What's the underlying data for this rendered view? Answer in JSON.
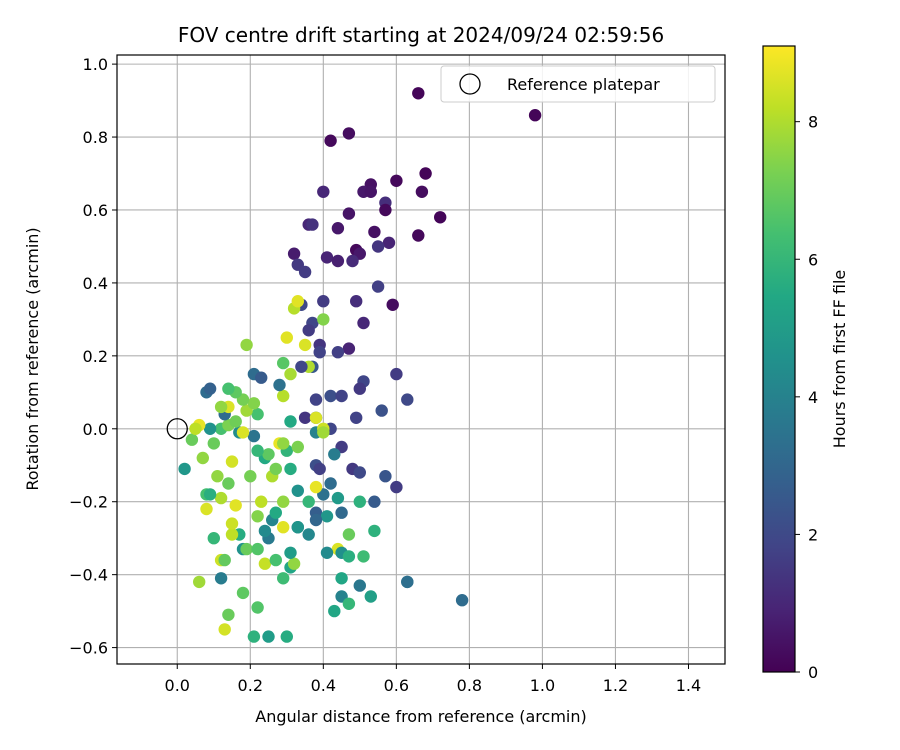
{
  "chart_data": {
    "type": "scatter",
    "title": "FOV centre drift starting at 2024/09/24 02:59:56",
    "xlabel": "Angular distance from reference (arcmin)",
    "ylabel": "Rotation from reference (arcmin)",
    "xlim": [
      -0.165,
      1.5
    ],
    "ylim": [
      -0.645,
      1.025
    ],
    "xticks": [
      0.0,
      0.2,
      0.4,
      0.6,
      0.8,
      1.0,
      1.2,
      1.4
    ],
    "xtick_labels": [
      "0.0",
      "0.2",
      "0.4",
      "0.6",
      "0.8",
      "1.0",
      "1.2",
      "1.4"
    ],
    "yticks": [
      -0.6,
      -0.4,
      -0.2,
      0.0,
      0.2,
      0.4,
      0.6,
      0.8,
      1.0
    ],
    "ytick_labels": [
      "−0.6",
      "−0.4",
      "−0.2",
      "0.0",
      "0.2",
      "0.4",
      "0.6",
      "0.8",
      "1.0"
    ],
    "grid": true,
    "legend": {
      "placement": "top-right",
      "entries": [
        "Reference platepar"
      ]
    },
    "colorbar": {
      "label": "Hours from first FF file",
      "colormap": "viridis",
      "range": [
        0,
        9.1
      ],
      "ticks": [
        0,
        2,
        4,
        6,
        8
      ],
      "tick_labels": [
        "0",
        "2",
        "4",
        "6",
        "8"
      ]
    },
    "reference_point": {
      "x": 0.0,
      "y": 0.0
    },
    "points": [
      {
        "x": 0.66,
        "y": 0.92,
        "c": 0.1
      },
      {
        "x": 0.98,
        "y": 0.86,
        "c": 0.1
      },
      {
        "x": 0.47,
        "y": 0.81,
        "c": 0.3
      },
      {
        "x": 0.42,
        "y": 0.79,
        "c": 0.2
      },
      {
        "x": 0.68,
        "y": 0.7,
        "c": 0.1
      },
      {
        "x": 0.6,
        "y": 0.68,
        "c": 0.2
      },
      {
        "x": 0.53,
        "y": 0.67,
        "c": 0.4
      },
      {
        "x": 0.4,
        "y": 0.65,
        "c": 1.0
      },
      {
        "x": 0.51,
        "y": 0.65,
        "c": 0.6
      },
      {
        "x": 0.53,
        "y": 0.65,
        "c": 0.5
      },
      {
        "x": 0.67,
        "y": 0.65,
        "c": 0.3
      },
      {
        "x": 0.57,
        "y": 0.62,
        "c": 1.2
      },
      {
        "x": 0.57,
        "y": 0.6,
        "c": 0.2
      },
      {
        "x": 0.47,
        "y": 0.59,
        "c": 0.5
      },
      {
        "x": 0.72,
        "y": 0.58,
        "c": 0.1
      },
      {
        "x": 0.36,
        "y": 0.56,
        "c": 1.0
      },
      {
        "x": 0.37,
        "y": 0.56,
        "c": 1.3
      },
      {
        "x": 0.44,
        "y": 0.55,
        "c": 0.6
      },
      {
        "x": 0.54,
        "y": 0.54,
        "c": 0.4
      },
      {
        "x": 0.66,
        "y": 0.53,
        "c": 0.2
      },
      {
        "x": 0.58,
        "y": 0.51,
        "c": 0.9
      },
      {
        "x": 0.55,
        "y": 0.5,
        "c": 1.4
      },
      {
        "x": 0.49,
        "y": 0.49,
        "c": 0.2
      },
      {
        "x": 0.5,
        "y": 0.48,
        "c": 0.6
      },
      {
        "x": 0.32,
        "y": 0.48,
        "c": 0.7
      },
      {
        "x": 0.41,
        "y": 0.47,
        "c": 0.9
      },
      {
        "x": 0.44,
        "y": 0.46,
        "c": 0.8
      },
      {
        "x": 0.48,
        "y": 0.46,
        "c": 1.1
      },
      {
        "x": 0.33,
        "y": 0.45,
        "c": 1.5
      },
      {
        "x": 0.35,
        "y": 0.43,
        "c": 1.6
      },
      {
        "x": 0.55,
        "y": 0.39,
        "c": 1.7
      },
      {
        "x": 0.4,
        "y": 0.35,
        "c": 1.6
      },
      {
        "x": 0.49,
        "y": 0.35,
        "c": 1.2
      },
      {
        "x": 0.59,
        "y": 0.34,
        "c": 0.3
      },
      {
        "x": 0.34,
        "y": 0.34,
        "c": 2.0
      },
      {
        "x": 0.37,
        "y": 0.29,
        "c": 1.9
      },
      {
        "x": 0.51,
        "y": 0.29,
        "c": 1.0
      },
      {
        "x": 0.36,
        "y": 0.27,
        "c": 1.6
      },
      {
        "x": 0.39,
        "y": 0.23,
        "c": 1.4
      },
      {
        "x": 0.47,
        "y": 0.22,
        "c": 0.9
      },
      {
        "x": 0.39,
        "y": 0.21,
        "c": 1.8
      },
      {
        "x": 0.44,
        "y": 0.21,
        "c": 1.7
      },
      {
        "x": 0.6,
        "y": 0.15,
        "c": 1.6
      },
      {
        "x": 0.37,
        "y": 0.17,
        "c": 2.5
      },
      {
        "x": 0.51,
        "y": 0.13,
        "c": 1.9
      },
      {
        "x": 0.5,
        "y": 0.11,
        "c": 1.5
      },
      {
        "x": 0.42,
        "y": 0.09,
        "c": 2.2
      },
      {
        "x": 0.45,
        "y": 0.09,
        "c": 1.8
      },
      {
        "x": 0.63,
        "y": 0.08,
        "c": 2.0
      },
      {
        "x": 0.38,
        "y": 0.08,
        "c": 1.8
      },
      {
        "x": 0.56,
        "y": 0.05,
        "c": 2.3
      },
      {
        "x": 0.49,
        "y": 0.03,
        "c": 1.8
      },
      {
        "x": 0.35,
        "y": 0.03,
        "c": 1.4
      },
      {
        "x": 0.38,
        "y": 0.03,
        "c": 3.3
      },
      {
        "x": 0.42,
        "y": 0.0,
        "c": 1.9
      },
      {
        "x": 0.38,
        "y": -0.01,
        "c": 4.0
      },
      {
        "x": 0.45,
        "y": -0.05,
        "c": 1.6
      },
      {
        "x": 0.43,
        "y": -0.07,
        "c": 3.8
      },
      {
        "x": 0.38,
        "y": -0.1,
        "c": 2.2
      },
      {
        "x": 0.39,
        "y": -0.11,
        "c": 1.7
      },
      {
        "x": 0.48,
        "y": -0.11,
        "c": 1.5
      },
      {
        "x": 0.5,
        "y": -0.12,
        "c": 2.0
      },
      {
        "x": 0.57,
        "y": -0.13,
        "c": 2.4
      },
      {
        "x": 0.6,
        "y": -0.16,
        "c": 1.6
      },
      {
        "x": 0.42,
        "y": -0.15,
        "c": 3.2
      },
      {
        "x": 0.4,
        "y": -0.18,
        "c": 3.4
      },
      {
        "x": 0.44,
        "y": -0.19,
        "c": 4.9
      },
      {
        "x": 0.5,
        "y": -0.2,
        "c": 5.8
      },
      {
        "x": 0.54,
        "y": -0.2,
        "c": 2.6
      },
      {
        "x": 0.45,
        "y": -0.23,
        "c": 3.1
      },
      {
        "x": 0.38,
        "y": -0.23,
        "c": 2.7
      },
      {
        "x": 0.41,
        "y": -0.24,
        "c": 4.8
      },
      {
        "x": 0.38,
        "y": -0.25,
        "c": 3.0
      },
      {
        "x": 0.36,
        "y": -0.29,
        "c": 4.2
      },
      {
        "x": 0.47,
        "y": -0.29,
        "c": 7.0
      },
      {
        "x": 0.54,
        "y": -0.28,
        "c": 5.8
      },
      {
        "x": 0.33,
        "y": -0.27,
        "c": 3.3
      },
      {
        "x": 0.44,
        "y": -0.33,
        "c": 8.6
      },
      {
        "x": 0.45,
        "y": -0.34,
        "c": 4.5
      },
      {
        "x": 0.41,
        "y": -0.34,
        "c": 4.3
      },
      {
        "x": 0.47,
        "y": -0.35,
        "c": 5.7
      },
      {
        "x": 0.51,
        "y": -0.35,
        "c": 6.2
      },
      {
        "x": 0.45,
        "y": -0.41,
        "c": 5.4
      },
      {
        "x": 0.5,
        "y": -0.43,
        "c": 3.6
      },
      {
        "x": 0.63,
        "y": -0.42,
        "c": 3.8
      },
      {
        "x": 0.63,
        "y": -0.42,
        "c": 3.3
      },
      {
        "x": 0.45,
        "y": -0.46,
        "c": 4.0
      },
      {
        "x": 0.53,
        "y": -0.46,
        "c": 5.1
      },
      {
        "x": 0.47,
        "y": -0.48,
        "c": 6.0
      },
      {
        "x": 0.43,
        "y": -0.5,
        "c": 5.4
      },
      {
        "x": 0.78,
        "y": -0.47,
        "c": 3.2
      },
      {
        "x": 0.3,
        "y": -0.57,
        "c": 5.6
      },
      {
        "x": 0.25,
        "y": -0.57,
        "c": 5.0
      },
      {
        "x": 0.21,
        "y": -0.57,
        "c": 5.8
      },
      {
        "x": 0.13,
        "y": -0.55,
        "c": 8.5
      },
      {
        "x": 0.14,
        "y": -0.51,
        "c": 7.0
      },
      {
        "x": 0.22,
        "y": -0.49,
        "c": 6.6
      },
      {
        "x": 0.18,
        "y": -0.45,
        "c": 6.8
      },
      {
        "x": 0.06,
        "y": -0.42,
        "c": 7.8
      },
      {
        "x": 0.12,
        "y": -0.41,
        "c": 3.8
      },
      {
        "x": 0.29,
        "y": -0.41,
        "c": 6.2
      },
      {
        "x": 0.31,
        "y": -0.38,
        "c": 5.4
      },
      {
        "x": 0.32,
        "y": -0.37,
        "c": 7.6
      },
      {
        "x": 0.24,
        "y": -0.37,
        "c": 8.3
      },
      {
        "x": 0.12,
        "y": -0.36,
        "c": 8.4
      },
      {
        "x": 0.13,
        "y": -0.36,
        "c": 6.9
      },
      {
        "x": 0.27,
        "y": -0.36,
        "c": 6.4
      },
      {
        "x": 0.31,
        "y": -0.34,
        "c": 5.0
      },
      {
        "x": 0.18,
        "y": -0.33,
        "c": 4.6
      },
      {
        "x": 0.19,
        "y": -0.33,
        "c": 7.0
      },
      {
        "x": 0.22,
        "y": -0.33,
        "c": 6.6
      },
      {
        "x": 0.25,
        "y": -0.3,
        "c": 3.7
      },
      {
        "x": 0.1,
        "y": -0.3,
        "c": 6.0
      },
      {
        "x": 0.17,
        "y": -0.29,
        "c": 5.6
      },
      {
        "x": 0.15,
        "y": -0.29,
        "c": 8.2
      },
      {
        "x": 0.24,
        "y": -0.28,
        "c": 4.3
      },
      {
        "x": 0.29,
        "y": -0.27,
        "c": 8.7
      },
      {
        "x": 0.33,
        "y": -0.27,
        "c": 4.7
      },
      {
        "x": 0.15,
        "y": -0.26,
        "c": 8.4
      },
      {
        "x": 0.26,
        "y": -0.25,
        "c": 4.1
      },
      {
        "x": 0.22,
        "y": -0.24,
        "c": 7.4
      },
      {
        "x": 0.27,
        "y": -0.23,
        "c": 5.5
      },
      {
        "x": 0.08,
        "y": -0.22,
        "c": 8.6
      },
      {
        "x": 0.16,
        "y": -0.21,
        "c": 8.7
      },
      {
        "x": 0.23,
        "y": -0.2,
        "c": 8.2
      },
      {
        "x": 0.12,
        "y": -0.19,
        "c": 8.0
      },
      {
        "x": 0.29,
        "y": -0.2,
        "c": 7.6
      },
      {
        "x": 0.36,
        "y": -0.2,
        "c": 6.0
      },
      {
        "x": 0.08,
        "y": -0.18,
        "c": 6.4
      },
      {
        "x": 0.09,
        "y": -0.18,
        "c": 5.7
      },
      {
        "x": 0.33,
        "y": -0.17,
        "c": 4.6
      },
      {
        "x": 0.38,
        "y": -0.16,
        "c": 8.8
      },
      {
        "x": 0.14,
        "y": -0.15,
        "c": 7.0
      },
      {
        "x": 0.2,
        "y": -0.13,
        "c": 7.2
      },
      {
        "x": 0.26,
        "y": -0.13,
        "c": 8.0
      },
      {
        "x": 0.11,
        "y": -0.13,
        "c": 7.6
      },
      {
        "x": 0.27,
        "y": -0.11,
        "c": 7.2
      },
      {
        "x": 0.31,
        "y": -0.11,
        "c": 5.6
      },
      {
        "x": 0.02,
        "y": -0.11,
        "c": 4.8
      },
      {
        "x": 0.15,
        "y": -0.09,
        "c": 8.5
      },
      {
        "x": 0.24,
        "y": -0.08,
        "c": 5.5
      },
      {
        "x": 0.07,
        "y": -0.08,
        "c": 7.6
      },
      {
        "x": 0.25,
        "y": -0.07,
        "c": 6.8
      },
      {
        "x": 0.22,
        "y": -0.06,
        "c": 6.0
      },
      {
        "x": 0.3,
        "y": -0.06,
        "c": 5.9
      },
      {
        "x": 0.33,
        "y": -0.05,
        "c": 7.3
      },
      {
        "x": 0.1,
        "y": -0.04,
        "c": 7.0
      },
      {
        "x": 0.28,
        "y": -0.04,
        "c": 8.8
      },
      {
        "x": 0.29,
        "y": -0.04,
        "c": 7.6
      },
      {
        "x": 0.04,
        "y": -0.03,
        "c": 7.0
      },
      {
        "x": 0.21,
        "y": -0.02,
        "c": 3.5
      },
      {
        "x": 0.17,
        "y": -0.01,
        "c": 4.4
      },
      {
        "x": 0.18,
        "y": -0.01,
        "c": 8.6
      },
      {
        "x": 0.4,
        "y": 0.0,
        "c": 8.4
      },
      {
        "x": 0.4,
        "y": -0.01,
        "c": 7.8
      },
      {
        "x": 0.12,
        "y": 0.0,
        "c": 6.4
      },
      {
        "x": 0.09,
        "y": 0.0,
        "c": 4.6
      },
      {
        "x": 0.06,
        "y": 0.01,
        "c": 8.8
      },
      {
        "x": 0.05,
        "y": 0.0,
        "c": 8.2
      },
      {
        "x": 0.14,
        "y": 0.01,
        "c": 7.3
      },
      {
        "x": 0.16,
        "y": 0.02,
        "c": 7.1
      },
      {
        "x": 0.31,
        "y": 0.02,
        "c": 5.5
      },
      {
        "x": 0.38,
        "y": 0.03,
        "c": 8.6
      },
      {
        "x": 0.22,
        "y": 0.04,
        "c": 6.4
      },
      {
        "x": 0.13,
        "y": 0.04,
        "c": 3.2
      },
      {
        "x": 0.19,
        "y": 0.05,
        "c": 7.8
      },
      {
        "x": 0.14,
        "y": 0.06,
        "c": 8.6
      },
      {
        "x": 0.12,
        "y": 0.06,
        "c": 7.6
      },
      {
        "x": 0.21,
        "y": 0.07,
        "c": 7.4
      },
      {
        "x": 0.18,
        "y": 0.08,
        "c": 7.2
      },
      {
        "x": 0.29,
        "y": 0.09,
        "c": 8.1
      },
      {
        "x": 0.16,
        "y": 0.1,
        "c": 6.8
      },
      {
        "x": 0.08,
        "y": 0.1,
        "c": 3.2
      },
      {
        "x": 0.14,
        "y": 0.11,
        "c": 6.4
      },
      {
        "x": 0.09,
        "y": 0.11,
        "c": 2.8
      },
      {
        "x": 0.28,
        "y": 0.12,
        "c": 3.4
      },
      {
        "x": 0.21,
        "y": 0.15,
        "c": 3.2
      },
      {
        "x": 0.23,
        "y": 0.14,
        "c": 2.6
      },
      {
        "x": 0.31,
        "y": 0.15,
        "c": 7.9
      },
      {
        "x": 0.29,
        "y": 0.18,
        "c": 6.7
      },
      {
        "x": 0.36,
        "y": 0.17,
        "c": 8.0
      },
      {
        "x": 0.34,
        "y": 0.17,
        "c": 1.9
      },
      {
        "x": 0.19,
        "y": 0.23,
        "c": 7.6
      },
      {
        "x": 0.35,
        "y": 0.23,
        "c": 8.6
      },
      {
        "x": 0.3,
        "y": 0.25,
        "c": 8.7
      },
      {
        "x": 0.4,
        "y": 0.3,
        "c": 7.4
      },
      {
        "x": 0.32,
        "y": 0.33,
        "c": 8.1
      },
      {
        "x": 0.33,
        "y": 0.35,
        "c": 8.7
      }
    ]
  }
}
